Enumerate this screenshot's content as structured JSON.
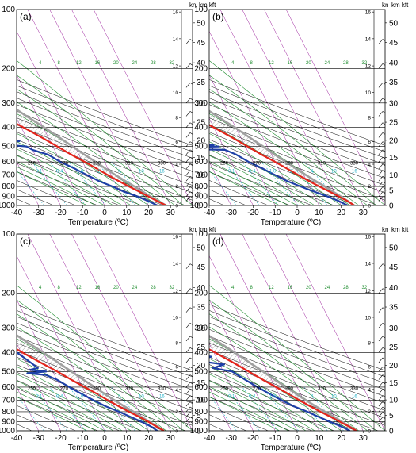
{
  "figure": {
    "colors": {
      "isobar": "#000000",
      "isotherm": "#9b1d9b",
      "dry_adiabat": "#000000",
      "moist_adiabat": "#1e8c2e",
      "mixing_ratio": "#2bb3c9",
      "temperature": "#e3241b",
      "dewpoint": "#1d3fa6",
      "parcel": "#a0a0a0",
      "cape_hatch": "#555555"
    },
    "axis_labels": {
      "x": "Temperature (ºC)",
      "height_units": "km kft",
      "wind_units": "kn"
    }
  },
  "chart_data": [
    {
      "type": "line",
      "panel_label": "(a)",
      "x_ticks": [
        "-40",
        "-30",
        "-20",
        "-10",
        "0",
        "10",
        "20",
        "30"
      ],
      "y_ticks": [
        "100",
        "200",
        "300",
        "400",
        "500",
        "600",
        "700",
        "800",
        "900",
        "1000"
      ],
      "km_ticks": [
        "16",
        "14",
        "12",
        "10",
        "8",
        "6",
        "4",
        "2",
        "0"
      ],
      "kft_ticks": [
        "50",
        "45",
        "40",
        "35",
        "30",
        "25",
        "20",
        "15",
        "10",
        "5",
        "0"
      ],
      "mixing_ratio_labels": [
        "0.1",
        "0.4",
        "1.0",
        "2",
        "4",
        "10",
        "16"
      ],
      "moist_adiabat_labels": [
        "4",
        "8",
        "12",
        "16",
        "20",
        "24",
        "28",
        "32"
      ],
      "dry_adiabat_labels": [
        "250",
        "270",
        "290",
        "310",
        "330"
      ],
      "xlim": [
        -40,
        40
      ],
      "ylim": [
        1000,
        100
      ],
      "series": [
        {
          "p": [
            1000,
            950,
            900,
            850,
            800,
            750,
            700,
            650,
            600,
            550,
            500,
            450,
            400,
            350,
            300,
            250,
            200,
            150,
            100
          ],
          "t": [
            28,
            25,
            22,
            19,
            15.5,
            12,
            8.5,
            5,
            1,
            -3.5,
            -8,
            -13,
            -19,
            -26,
            -33,
            -42,
            -52,
            -63,
            -72
          ]
        },
        {
          "p": [
            1000,
            950,
            900,
            850,
            800,
            750,
            700,
            650,
            600,
            550,
            520,
            500,
            480,
            470,
            460,
            450,
            430,
            410,
            400,
            390,
            380,
            350,
            330,
            300,
            280,
            250,
            220,
            200,
            180,
            150,
            120,
            100
          ],
          "t": [
            24,
            21,
            17,
            12,
            8,
            3,
            -1,
            -5,
            -10,
            -14,
            -20,
            -22,
            -40,
            -24,
            -50,
            -26,
            -30,
            -60,
            -28,
            -55,
            -32,
            -35,
            -38,
            -40,
            -42,
            -45,
            -48,
            -50,
            -52,
            -58,
            -64,
            -70
          ]
        },
        {
          "p": [
            1000,
            950,
            900,
            850,
            800,
            750,
            700,
            650,
            600,
            550,
            500,
            450,
            400,
            350,
            300,
            250,
            200,
            150,
            100
          ],
          "t": [
            28,
            25.5,
            23,
            20.5,
            18,
            15,
            12,
            9,
            6,
            2.5,
            -1,
            -5,
            -9.5,
            -15,
            -21,
            -28,
            -37,
            -49,
            -68
          ]
        }
      ]
    },
    {
      "type": "line",
      "panel_label": "(b)",
      "x_ticks": [
        "-40",
        "-30",
        "-20",
        "-10",
        "0",
        "10",
        "20",
        "30"
      ],
      "y_ticks": [
        "100",
        "200",
        "300",
        "400",
        "500",
        "600",
        "700",
        "800",
        "900",
        "1000"
      ],
      "km_ticks": [
        "16",
        "14",
        "12",
        "10",
        "8",
        "6",
        "4",
        "2",
        "0"
      ],
      "kft_ticks": [
        "50",
        "45",
        "40",
        "35",
        "30",
        "25",
        "20",
        "15",
        "10",
        "5",
        "0"
      ],
      "mixing_ratio_labels": [
        "0.1",
        "0.4",
        "1.0",
        "2",
        "4",
        "10",
        "16"
      ],
      "moist_adiabat_labels": [
        "4",
        "8",
        "12",
        "16",
        "20",
        "24",
        "28",
        "32"
      ],
      "dry_adiabat_labels": [
        "250",
        "270",
        "290",
        "310",
        "330"
      ],
      "xlim": [
        -40,
        40
      ],
      "ylim": [
        1000,
        100
      ],
      "series": [
        {
          "p": [
            1000,
            950,
            900,
            850,
            800,
            750,
            700,
            650,
            600,
            550,
            500,
            450,
            400,
            350,
            300,
            250,
            200,
            150,
            100
          ],
          "t": [
            26,
            24,
            21,
            18,
            14.5,
            11,
            7.5,
            4,
            0,
            -4.5,
            -9,
            -14,
            -20,
            -27,
            -34,
            -43,
            -53,
            -64,
            -73
          ]
        },
        {
          "p": [
            1000,
            950,
            900,
            850,
            800,
            750,
            700,
            650,
            600,
            550,
            520,
            510,
            500,
            495,
            490,
            485,
            480,
            470,
            450,
            420,
            400,
            380,
            350,
            320,
            300,
            270,
            250,
            220,
            200,
            170,
            150,
            120,
            100
          ],
          "t": [
            23,
            20,
            16,
            11,
            6,
            1,
            -3,
            -7,
            -12,
            -16,
            -20,
            -55,
            -22,
            -60,
            -24,
            -58,
            -26,
            -28,
            -30,
            -32,
            -34,
            -36,
            -38,
            -40,
            -42,
            -44,
            -46,
            -48,
            -50,
            -54,
            -58,
            -64,
            -70
          ]
        },
        {
          "p": [
            1000,
            950,
            900,
            850,
            800,
            750,
            700,
            650,
            600,
            550,
            500,
            450,
            400,
            350,
            300,
            250,
            200,
            150,
            100
          ],
          "t": [
            26,
            24,
            22,
            19.5,
            17,
            14,
            11,
            8,
            5,
            1.5,
            -2,
            -6,
            -10.5,
            -16,
            -22,
            -29,
            -38,
            -50,
            -68
          ]
        }
      ]
    },
    {
      "type": "line",
      "panel_label": "(c)",
      "x_ticks": [
        "-40",
        "-30",
        "-20",
        "-10",
        "0",
        "10",
        "20",
        "30"
      ],
      "y_ticks": [
        "100",
        "200",
        "300",
        "400",
        "500",
        "600",
        "700",
        "800",
        "900",
        "1000"
      ],
      "km_ticks": [
        "16",
        "14",
        "12",
        "10",
        "8",
        "6",
        "4",
        "2",
        "0"
      ],
      "kft_ticks": [
        "50",
        "45",
        "40",
        "35",
        "30",
        "25",
        "20",
        "15",
        "10",
        "5",
        "0"
      ],
      "mixing_ratio_labels": [
        "0.1",
        "0.4",
        "1.0",
        "2",
        "4",
        "10",
        "16"
      ],
      "moist_adiabat_labels": [
        "4",
        "8",
        "12",
        "16",
        "20",
        "24",
        "28",
        "32"
      ],
      "dry_adiabat_labels": [
        "250",
        "270",
        "290",
        "310",
        "330"
      ],
      "xlim": [
        -40,
        40
      ],
      "ylim": [
        1000,
        100
      ],
      "series": [
        {
          "p": [
            1000,
            950,
            900,
            850,
            800,
            750,
            700,
            650,
            600,
            550,
            500,
            450,
            400,
            350,
            300,
            250,
            200,
            150,
            100
          ],
          "t": [
            27,
            24.5,
            22,
            19,
            15.5,
            12,
            8.5,
            5,
            1,
            -3.5,
            -8,
            -13.5,
            -19.5,
            -26,
            -33,
            -42,
            -52,
            -63,
            -72
          ]
        },
        {
          "p": [
            1000,
            950,
            900,
            850,
            800,
            750,
            700,
            650,
            600,
            550,
            520,
            510,
            500,
            490,
            480,
            450,
            400,
            350,
            300,
            250,
            200,
            150,
            120,
            100
          ],
          "t": [
            24,
            22,
            19,
            15,
            11,
            6,
            2,
            -2,
            -6,
            -10,
            -14,
            -22,
            -13,
            -20,
            -16,
            -18,
            -22,
            -28,
            -34,
            -42,
            -50,
            -58,
            -64,
            -70
          ]
        },
        {
          "p": [
            1000,
            950,
            900,
            850,
            800,
            750,
            700,
            650,
            600,
            550,
            500,
            450,
            400,
            350,
            300,
            250,
            200,
            150,
            100
          ],
          "t": [
            27,
            25,
            22.5,
            20,
            17.5,
            14.5,
            11.5,
            8.5,
            5.5,
            2,
            -1.5,
            -5.5,
            -10,
            -15.5,
            -21.5,
            -28.5,
            -37.5,
            -49.5,
            -68
          ]
        }
      ]
    },
    {
      "type": "line",
      "panel_label": "(d)",
      "x_ticks": [
        "-40",
        "-30",
        "-20",
        "-10",
        "0",
        "10",
        "20",
        "30"
      ],
      "y_ticks": [
        "100",
        "200",
        "300",
        "400",
        "500",
        "600",
        "700",
        "800",
        "900",
        "1000"
      ],
      "km_ticks": [
        "16",
        "14",
        "12",
        "10",
        "8",
        "6",
        "4",
        "2",
        "0"
      ],
      "kft_ticks": [
        "50",
        "45",
        "40",
        "35",
        "30",
        "25",
        "20",
        "15",
        "10",
        "5",
        "0"
      ],
      "mixing_ratio_labels": [
        "0.1",
        "0.4",
        "1.0",
        "2",
        "4",
        "10",
        "16"
      ],
      "moist_adiabat_labels": [
        "4",
        "8",
        "12",
        "16",
        "20",
        "24",
        "28",
        "32"
      ],
      "dry_adiabat_labels": [
        "250",
        "270",
        "290",
        "310",
        "330"
      ],
      "xlim": [
        -40,
        40
      ],
      "ylim": [
        1000,
        100
      ],
      "series": [
        {
          "p": [
            1000,
            950,
            900,
            850,
            800,
            750,
            700,
            650,
            600,
            550,
            500,
            450,
            400,
            350,
            300,
            250,
            200,
            150,
            100
          ],
          "t": [
            27,
            24.5,
            21.5,
            18.5,
            15,
            11.5,
            8,
            4.5,
            0.5,
            -4,
            -8.5,
            -13.5,
            -19.5,
            -26.5,
            -33.5,
            -42.5,
            -52,
            -63,
            -72
          ]
        },
        {
          "p": [
            1000,
            950,
            900,
            850,
            800,
            750,
            700,
            650,
            600,
            550,
            500,
            480,
            460,
            440,
            420,
            400,
            380,
            360,
            340,
            320,
            300,
            280,
            260,
            240,
            220,
            200,
            180,
            160,
            140,
            120,
            100
          ],
          "t": [
            24,
            21,
            17,
            13,
            9,
            4,
            0,
            -4,
            -8,
            -12,
            -16,
            -24,
            -18,
            -30,
            -22,
            -38,
            -26,
            -32,
            -30,
            -36,
            -34,
            -40,
            -38,
            -44,
            -42,
            -48,
            -46,
            -54,
            -56,
            -62,
            -68
          ]
        },
        {
          "p": [
            1000,
            950,
            900,
            850,
            800,
            750,
            700,
            650,
            600,
            550,
            500,
            450,
            400,
            350,
            300,
            250,
            200,
            150,
            100
          ],
          "t": [
            27,
            25,
            22.5,
            20,
            17,
            14,
            11,
            8,
            5,
            1.5,
            -2,
            -6,
            -10.5,
            -16,
            -22,
            -29,
            -38,
            -50,
            -68
          ]
        }
      ]
    }
  ]
}
